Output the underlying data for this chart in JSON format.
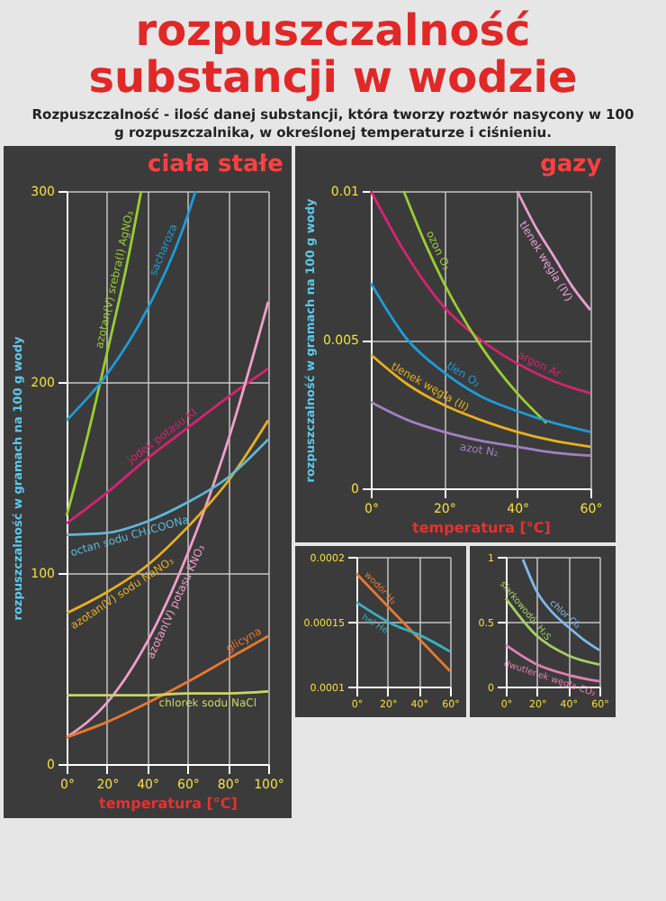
{
  "chart_data": [
    {
      "type": "other",
      "title": "rozpuszczalność substancji w wodzie",
      "subtitle": "Rozpuszczalność - ilość danej substancji, która tworzy roztwór nasycony w 100 g rozpuszczalnika, w określonej temperaturze i ciśnieniu."
    },
    {
      "type": "line",
      "title": "ciała stałe",
      "ylabel": "rozpuszczalność w gramach na 100 g wody",
      "xlabel": "temperatura [°C]",
      "xlim": [
        0,
        100
      ],
      "xticks": [
        {
          "value": 0,
          "label": "0°"
        },
        {
          "value": 20,
          "label": "20°"
        },
        {
          "value": 40,
          "label": "40°"
        },
        {
          "value": 60,
          "label": "60°"
        },
        {
          "value": 80,
          "label": "80°"
        },
        {
          "value": 100,
          "label": "100°"
        }
      ],
      "ylim": [
        0,
        300
      ],
      "yticks": [
        0,
        100,
        200,
        300
      ],
      "grid": true,
      "series": [
        {
          "name": "azotan(V) srebra(I) AgNO₃",
          "color": "#9acd32",
          "x": [
            0,
            10,
            20,
            30,
            37
          ],
          "values": [
            130,
            170,
            215,
            262,
            300
          ]
        },
        {
          "name": "sacharoza",
          "color": "#1e9bd7",
          "x": [
            0,
            20,
            40,
            60,
            64
          ],
          "values": [
            180,
            204,
            238,
            287,
            300
          ]
        },
        {
          "name": "jodek potasu KI",
          "color": "#d6246e",
          "x": [
            0,
            20,
            40,
            60,
            80,
            100
          ],
          "values": [
            126,
            142,
            160,
            176,
            192,
            207
          ]
        },
        {
          "name": "azotan(V) potasu KNO₃",
          "color": "#f0a0c8",
          "x": [
            0,
            20,
            40,
            60,
            80,
            100
          ],
          "values": [
            14,
            32,
            64,
            110,
            169,
            242
          ]
        },
        {
          "name": "azotan(V) sodu NaNO₃",
          "color": "#e8b020",
          "x": [
            0,
            20,
            40,
            60,
            80,
            100
          ],
          "values": [
            79,
            90,
            104,
            124,
            148,
            180
          ]
        },
        {
          "name": "octan sodu CH₃COONa",
          "color": "#5fb8d8",
          "x": [
            0,
            20,
            40,
            60,
            80,
            100
          ],
          "values": [
            120,
            121,
            127,
            137,
            150,
            170
          ]
        },
        {
          "name": "glicyna",
          "color": "#e87830",
          "x": [
            0,
            20,
            40,
            60,
            80,
            100
          ],
          "values": [
            14,
            22,
            32,
            43,
            55,
            67
          ]
        },
        {
          "name": "chlorek sodu NaCl",
          "color": "#c8d860",
          "x": [
            0,
            20,
            40,
            60,
            80,
            100
          ],
          "values": [
            36,
            36,
            36,
            37,
            37,
            38
          ]
        }
      ]
    },
    {
      "type": "line",
      "title": "gazy",
      "ylabel": "rozpuszczalność w gramach na 100 g wody",
      "xlabel": "temperatura [°C]",
      "xlim": [
        0,
        60
      ],
      "xticks": [
        {
          "value": 0,
          "label": "0°"
        },
        {
          "value": 20,
          "label": "20°"
        },
        {
          "value": 40,
          "label": "40°"
        },
        {
          "value": 60,
          "label": "60°"
        }
      ],
      "ylim": [
        0,
        0.01
      ],
      "yticks": [
        0,
        0.005,
        0.01
      ],
      "grid": true,
      "series": [
        {
          "name": "argon Ar",
          "color": "#d6246e",
          "x": [
            0,
            10,
            20,
            30,
            40,
            50,
            60
          ],
          "values": [
            0.01,
            0.0078,
            0.0061,
            0.005,
            0.0042,
            0.0036,
            0.0032
          ]
        },
        {
          "name": "ozon O₃",
          "color": "#9acd32",
          "x": [
            9,
            15,
            20,
            30,
            40,
            48
          ],
          "values": [
            0.01,
            0.0082,
            0.0069,
            0.0048,
            0.0032,
            0.0022
          ]
        },
        {
          "name": "tlen O₂",
          "color": "#1e9bd7",
          "x": [
            0,
            10,
            20,
            30,
            40,
            50,
            60
          ],
          "values": [
            0.0069,
            0.005,
            0.0039,
            0.0031,
            0.0026,
            0.0022,
            0.0019
          ]
        },
        {
          "name": "tlenek węgla (IV)",
          "color": "#e8a0d0",
          "x": [
            40,
            45,
            50,
            55,
            60
          ],
          "values": [
            0.01,
            0.0088,
            0.0078,
            0.0068,
            0.006
          ]
        },
        {
          "name": "tlenek węgla (II)",
          "color": "#e8b020",
          "x": [
            0,
            10,
            20,
            30,
            40,
            50,
            60
          ],
          "values": [
            0.0045,
            0.0035,
            0.0028,
            0.0023,
            0.0019,
            0.0016,
            0.0014
          ]
        },
        {
          "name": "azot N₂",
          "color": "#a080c0",
          "x": [
            0,
            10,
            20,
            30,
            40,
            50,
            60
          ],
          "values": [
            0.0029,
            0.0023,
            0.0019,
            0.0016,
            0.0014,
            0.0012,
            0.0011
          ]
        }
      ]
    },
    {
      "type": "line",
      "xlim": [
        0,
        60
      ],
      "xticks": [
        {
          "value": 0,
          "label": "0°"
        },
        {
          "value": 20,
          "label": "20°"
        },
        {
          "value": 40,
          "label": "40°"
        },
        {
          "value": 60,
          "label": "60°"
        }
      ],
      "ylim": [
        0.0001,
        0.0002
      ],
      "yticks": [
        0.0001,
        0.00015,
        0.0002
      ],
      "grid": true,
      "series": [
        {
          "name": "wodór H₂",
          "color": "#e87830",
          "x": [
            0,
            20,
            40,
            60
          ],
          "values": [
            0.000187,
            0.000162,
            0.000137,
            0.000112
          ]
        },
        {
          "name": "hel He",
          "color": "#3ab0c0",
          "x": [
            0,
            25,
            40,
            60
          ],
          "values": [
            0.000165,
            0.000147,
            0.00014,
            0.000127
          ]
        }
      ]
    },
    {
      "type": "line",
      "xlim": [
        0,
        60
      ],
      "xticks": [
        {
          "value": 0,
          "label": "0°"
        },
        {
          "value": 20,
          "label": "20°"
        },
        {
          "value": 40,
          "label": "40°"
        },
        {
          "value": 60,
          "label": "60°"
        }
      ],
      "ylim": [
        0,
        1
      ],
      "yticks": [
        0,
        0.5,
        1
      ],
      "grid": true,
      "series": [
        {
          "name": "chlor Cl₂",
          "color": "#80b8e8",
          "x": [
            11,
            20,
            30,
            40,
            50,
            60
          ],
          "values": [
            0.98,
            0.73,
            0.57,
            0.46,
            0.36,
            0.28
          ]
        },
        {
          "name": "siarkowodór H₂S",
          "color": "#a8d060",
          "x": [
            0,
            20,
            40,
            60
          ],
          "values": [
            0.68,
            0.39,
            0.24,
            0.17
          ]
        },
        {
          "name": "dwutlenek węgla CO₂",
          "color": "#e080b0",
          "x": [
            0,
            20,
            40,
            60
          ],
          "values": [
            0.32,
            0.17,
            0.09,
            0.04
          ]
        }
      ]
    }
  ]
}
